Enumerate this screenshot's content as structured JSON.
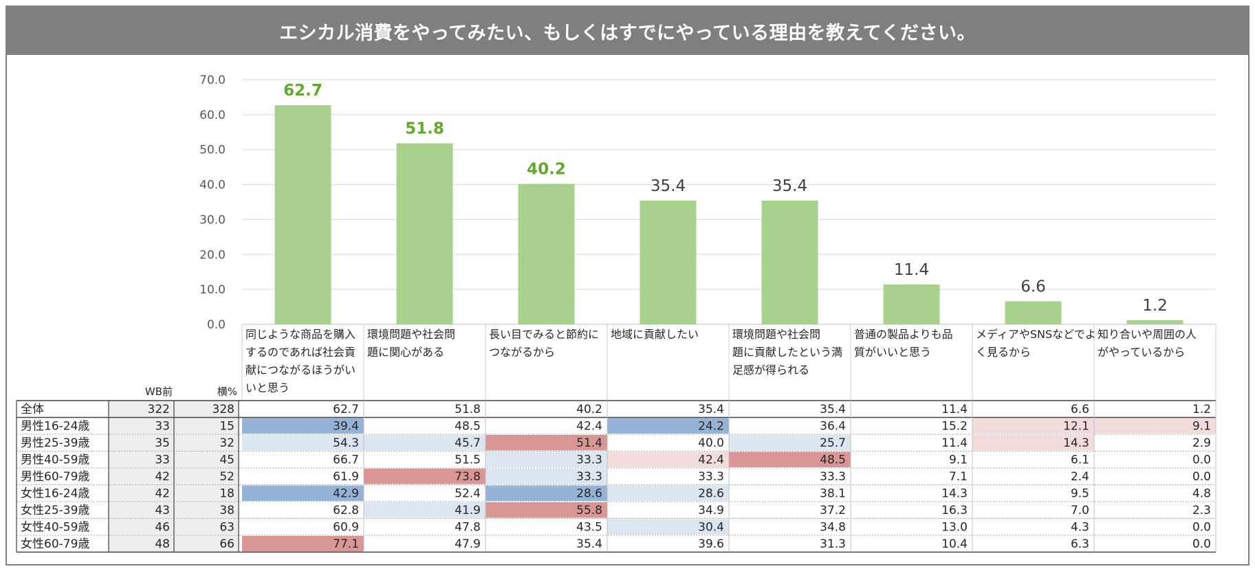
{
  "title": "エシカル消費をやってみたい、もしくはすでにやっている理由を教えてください。",
  "colors": {
    "bar": "#a9d18e",
    "highlight_label": "#62a82c",
    "normal_label": "#404040",
    "strong_low": "#95b3d7",
    "weak_low": "#dce6f1",
    "strong_high": "#da9694",
    "weak_high": "#f2dcdb",
    "grid": "#d9d9d9",
    "title_bg": "#7f7f7f"
  },
  "chart_data": {
    "type": "bar",
    "ylim": [
      0,
      70
    ],
    "yticks": [
      "0.0",
      "10.0",
      "20.0",
      "30.0",
      "40.0",
      "50.0",
      "60.0",
      "70.0"
    ],
    "grid": true,
    "categories": [
      [
        "同じような商品を購入",
        "するのであれば社会貢",
        "献につながるほうがい",
        "いと思う"
      ],
      [
        "環境問題や社会問",
        "題に関心がある"
      ],
      [
        "長い目でみると節約に",
        "つながるから"
      ],
      [
        "地域に貢献したい"
      ],
      [
        "環境問題や社会問",
        "題に貢献したという満",
        "足感が得られる"
      ],
      [
        "普通の製品よりも品",
        "質がいいと思う"
      ],
      [
        "メディアやSNSなどでよ",
        "く見るから"
      ],
      [
        "知り合いや周囲の人",
        "がやっているから"
      ]
    ],
    "values": [
      62.7,
      51.8,
      40.2,
      35.4,
      35.4,
      11.4,
      6.6,
      1.2
    ],
    "labels": [
      "62.7",
      "51.8",
      "40.2",
      "35.4",
      "35.4",
      "11.4",
      "6.6",
      "1.2"
    ],
    "highlight_top": 3
  },
  "table": {
    "headers": [
      "WB前",
      "横%"
    ],
    "rows": [
      {
        "name": "全体",
        "wb": "322",
        "n": "328",
        "values": [
          "62.7",
          "51.8",
          "40.2",
          "35.4",
          "35.4",
          "11.4",
          "6.6",
          "1.2"
        ],
        "shade": [
          "",
          "",
          "",
          "",
          "",
          "",
          "",
          ""
        ]
      },
      {
        "name": "男性16-24歳",
        "wb": "33",
        "n": "15",
        "values": [
          "39.4",
          "48.5",
          "42.4",
          "24.2",
          "36.4",
          "15.2",
          "12.1",
          "9.1"
        ],
        "shade": [
          "strong_low",
          "",
          "",
          "strong_low",
          "",
          "",
          "weak_high",
          "weak_high"
        ]
      },
      {
        "name": "男性25-39歳",
        "wb": "35",
        "n": "32",
        "values": [
          "54.3",
          "45.7",
          "51.4",
          "40.0",
          "25.7",
          "11.4",
          "14.3",
          "2.9"
        ],
        "shade": [
          "weak_low",
          "weak_low",
          "strong_high",
          "",
          "weak_low",
          "",
          "weak_high",
          ""
        ]
      },
      {
        "name": "男性40-59歳",
        "wb": "33",
        "n": "45",
        "values": [
          "66.7",
          "51.5",
          "33.3",
          "42.4",
          "48.5",
          "9.1",
          "6.1",
          "0.0"
        ],
        "shade": [
          "",
          "",
          "weak_low",
          "weak_high",
          "strong_high",
          "",
          "",
          ""
        ]
      },
      {
        "name": "男性60-79歳",
        "wb": "42",
        "n": "52",
        "values": [
          "61.9",
          "73.8",
          "33.3",
          "33.3",
          "33.3",
          "7.1",
          "2.4",
          "0.0"
        ],
        "shade": [
          "",
          "strong_high",
          "weak_low",
          "",
          "",
          "",
          "",
          ""
        ]
      },
      {
        "name": "女性16-24歳",
        "wb": "42",
        "n": "18",
        "values": [
          "42.9",
          "52.4",
          "28.6",
          "28.6",
          "38.1",
          "14.3",
          "9.5",
          "4.8"
        ],
        "shade": [
          "strong_low",
          "",
          "strong_low",
          "weak_low",
          "",
          "",
          "",
          ""
        ]
      },
      {
        "name": "女性25-39歳",
        "wb": "43",
        "n": "38",
        "values": [
          "62.8",
          "41.9",
          "55.8",
          "34.9",
          "37.2",
          "16.3",
          "7.0",
          "2.3"
        ],
        "shade": [
          "",
          "weak_low",
          "strong_high",
          "",
          "",
          "",
          "",
          ""
        ]
      },
      {
        "name": "女性40-59歳",
        "wb": "46",
        "n": "63",
        "values": [
          "60.9",
          "47.8",
          "43.5",
          "30.4",
          "34.8",
          "13.0",
          "4.3",
          "0.0"
        ],
        "shade": [
          "",
          "",
          "",
          "weak_low",
          "",
          "",
          "",
          ""
        ]
      },
      {
        "name": "女性60-79歳",
        "wb": "48",
        "n": "66",
        "values": [
          "77.1",
          "47.9",
          "35.4",
          "39.6",
          "31.3",
          "10.4",
          "6.3",
          "0.0"
        ],
        "shade": [
          "strong_high",
          "",
          "",
          "",
          "",
          "",
          "",
          ""
        ]
      }
    ]
  }
}
